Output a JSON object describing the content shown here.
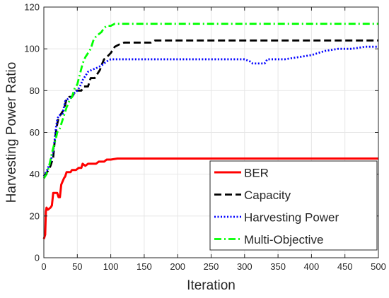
{
  "chart_data": {
    "type": "line",
    "title": "",
    "xlabel": "Iteration",
    "ylabel": "Harvesting Power Ratio",
    "xlim": [
      0,
      500
    ],
    "ylim": [
      0,
      120
    ],
    "xticks": [
      0,
      50,
      100,
      150,
      200,
      250,
      300,
      350,
      400,
      450,
      500
    ],
    "yticks": [
      0,
      20,
      40,
      60,
      80,
      100,
      120
    ],
    "grid": true,
    "legend_position": "bottom-right",
    "series": [
      {
        "name": "BER",
        "color": "#ff0000",
        "dash": "solid",
        "points": [
          [
            0,
            9
          ],
          [
            1,
            10
          ],
          [
            2,
            11
          ],
          [
            3,
            22
          ],
          [
            4,
            24
          ],
          [
            6,
            23
          ],
          [
            10,
            24
          ],
          [
            12,
            25
          ],
          [
            14,
            31
          ],
          [
            20,
            31
          ],
          [
            22,
            29
          ],
          [
            24,
            29
          ],
          [
            26,
            35
          ],
          [
            30,
            38
          ],
          [
            32,
            39
          ],
          [
            34,
            41
          ],
          [
            40,
            41
          ],
          [
            42,
            42
          ],
          [
            48,
            42
          ],
          [
            52,
            43
          ],
          [
            56,
            43
          ],
          [
            58,
            45
          ],
          [
            62,
            44
          ],
          [
            66,
            45
          ],
          [
            72,
            45
          ],
          [
            78,
            45
          ],
          [
            82,
            46
          ],
          [
            90,
            46
          ],
          [
            94,
            47
          ],
          [
            100,
            47
          ],
          [
            110,
            47.5
          ],
          [
            130,
            47.5
          ],
          [
            150,
            47.5
          ],
          [
            200,
            47.5
          ],
          [
            300,
            47.5
          ],
          [
            400,
            47.5
          ],
          [
            500,
            47.5
          ]
        ]
      },
      {
        "name": "Capacity",
        "color": "#000000",
        "dash": "dashed",
        "points": [
          [
            0,
            39
          ],
          [
            5,
            41
          ],
          [
            10,
            44
          ],
          [
            14,
            48
          ],
          [
            16,
            55
          ],
          [
            18,
            60
          ],
          [
            20,
            64
          ],
          [
            22,
            67
          ],
          [
            26,
            69
          ],
          [
            30,
            71
          ],
          [
            34,
            76
          ],
          [
            38,
            77
          ],
          [
            42,
            77
          ],
          [
            46,
            79
          ],
          [
            48,
            80
          ],
          [
            52,
            80
          ],
          [
            56,
            80
          ],
          [
            60,
            82
          ],
          [
            66,
            82
          ],
          [
            70,
            86
          ],
          [
            76,
            86
          ],
          [
            80,
            88
          ],
          [
            84,
            90
          ],
          [
            86,
            92
          ],
          [
            90,
            95
          ],
          [
            94,
            96
          ],
          [
            100,
            98
          ],
          [
            106,
            101
          ],
          [
            112,
            102
          ],
          [
            120,
            103
          ],
          [
            140,
            103
          ],
          [
            160,
            103
          ],
          [
            166,
            104
          ],
          [
            500,
            104
          ]
        ]
      },
      {
        "name": "Harvesting Power",
        "color": "#0000ff",
        "dash": "dotted",
        "points": [
          [
            0,
            39
          ],
          [
            5,
            42
          ],
          [
            10,
            46
          ],
          [
            14,
            51
          ],
          [
            16,
            56
          ],
          [
            18,
            62
          ],
          [
            20,
            66
          ],
          [
            22,
            68
          ],
          [
            28,
            69
          ],
          [
            30,
            72
          ],
          [
            32,
            75
          ],
          [
            36,
            76
          ],
          [
            42,
            77
          ],
          [
            46,
            79
          ],
          [
            50,
            80
          ],
          [
            54,
            82
          ],
          [
            58,
            85
          ],
          [
            62,
            87
          ],
          [
            66,
            89
          ],
          [
            72,
            90
          ],
          [
            80,
            91
          ],
          [
            86,
            92
          ],
          [
            90,
            93
          ],
          [
            94,
            94
          ],
          [
            100,
            95
          ],
          [
            120,
            95
          ],
          [
            200,
            95
          ],
          [
            300,
            95
          ],
          [
            308,
            94
          ],
          [
            312,
            93
          ],
          [
            330,
            93
          ],
          [
            334,
            95
          ],
          [
            360,
            95
          ],
          [
            380,
            96
          ],
          [
            400,
            97
          ],
          [
            420,
            99
          ],
          [
            440,
            100
          ],
          [
            460,
            100
          ],
          [
            480,
            101
          ],
          [
            500,
            101
          ]
        ]
      },
      {
        "name": "Multi-Objective",
        "color": "#00ff00",
        "dash": "dashdot",
        "points": [
          [
            0,
            38
          ],
          [
            4,
            40
          ],
          [
            8,
            44
          ],
          [
            12,
            50
          ],
          [
            16,
            55
          ],
          [
            18,
            57
          ],
          [
            20,
            60
          ],
          [
            24,
            62
          ],
          [
            28,
            66
          ],
          [
            30,
            68
          ],
          [
            34,
            72
          ],
          [
            38,
            75
          ],
          [
            42,
            77
          ],
          [
            46,
            81
          ],
          [
            50,
            83
          ],
          [
            54,
            88
          ],
          [
            58,
            93
          ],
          [
            62,
            96
          ],
          [
            66,
            98
          ],
          [
            70,
            100
          ],
          [
            74,
            104
          ],
          [
            78,
            106
          ],
          [
            82,
            107
          ],
          [
            86,
            108
          ],
          [
            90,
            110
          ],
          [
            94,
            111
          ],
          [
            100,
            111
          ],
          [
            106,
            112
          ],
          [
            500,
            112
          ]
        ]
      }
    ]
  }
}
